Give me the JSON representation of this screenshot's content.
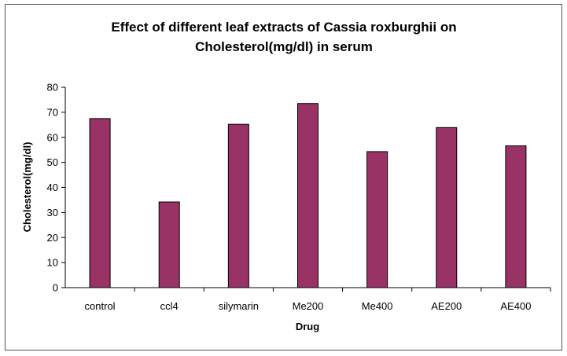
{
  "chart_data": {
    "type": "bar",
    "title_line1": "Effect of different leaf extracts of Cassia roxburghii on",
    "title_line2": "Cholesterol(mg/dl) in serum",
    "xlabel": "Drug",
    "ylabel": "Cholesterol(mg/dl)",
    "categories": [
      "control",
      "ccl4",
      "silymarin",
      "Me200",
      "Me400",
      "AE200",
      "AE400"
    ],
    "values": [
      67.5,
      34.2,
      65.2,
      73.5,
      54.3,
      63.9,
      56.6
    ],
    "ylim": [
      0,
      80
    ],
    "yticks": [
      "0",
      "10",
      "20",
      "30",
      "40",
      "50",
      "60",
      "70",
      "80"
    ],
    "grid": false,
    "legend": "none",
    "bar_color": "#993366",
    "bar_edge_color": "#000000"
  }
}
